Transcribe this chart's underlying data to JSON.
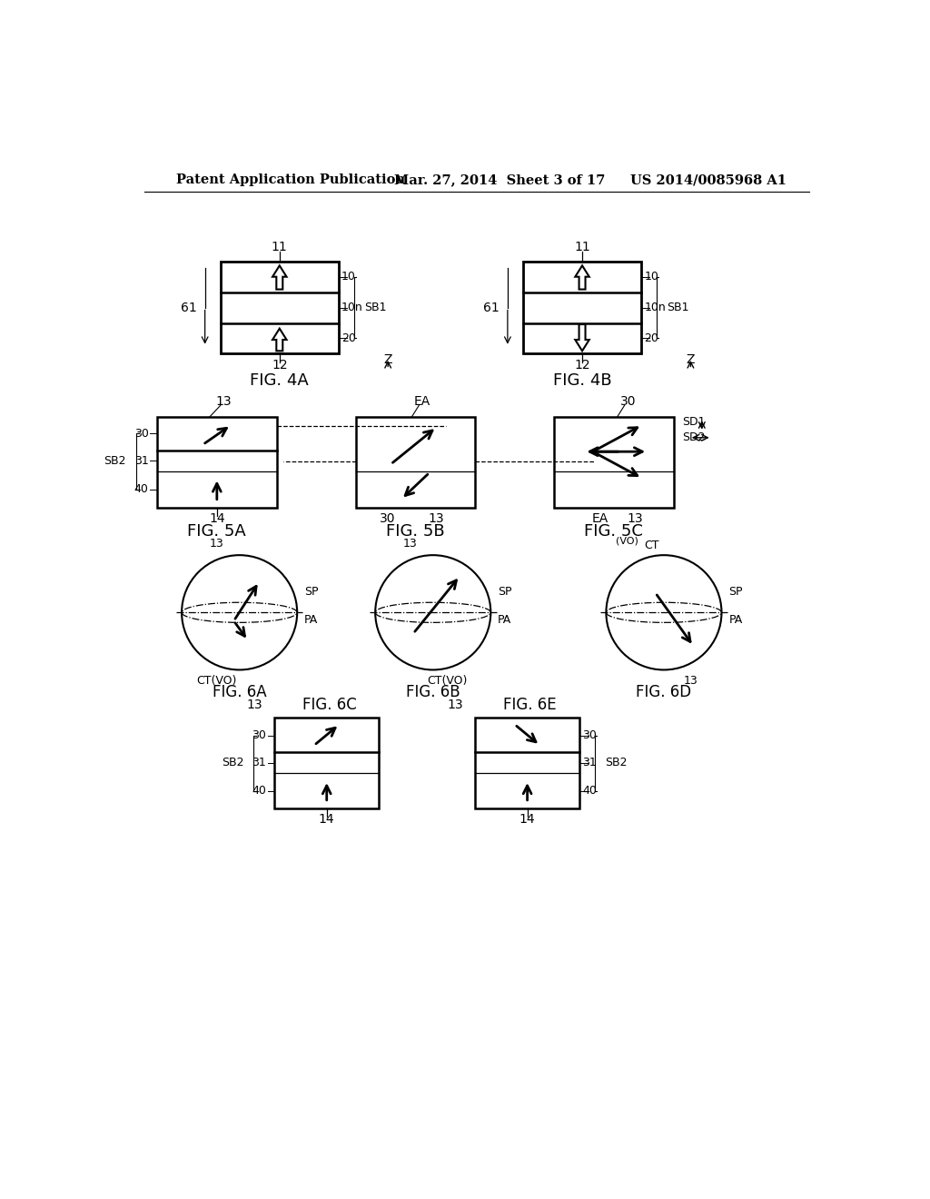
{
  "bg_color": "#ffffff",
  "header_left": "Patent Application Publication",
  "header_mid": "Mar. 27, 2014  Sheet 3 of 17",
  "header_right": "US 2014/0085968 A1",
  "fig4a_title": "FIG. 4A",
  "fig4b_title": "FIG. 4B",
  "fig5a_title": "FIG. 5A",
  "fig5b_title": "FIG. 5B",
  "fig5c_title": "FIG. 5C",
  "fig6a_title": "FIG. 6A",
  "fig6b_title": "FIG. 6B",
  "fig6c_title": "FIG. 6C",
  "fig6d_title": "FIG. 6D",
  "fig6e_title": "FIG. 6E"
}
